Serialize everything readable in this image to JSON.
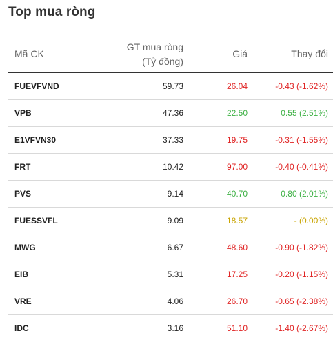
{
  "title": "Top mua ròng",
  "headers": {
    "symbol": "Mã CK",
    "value_line1": "GT mua ròng",
    "value_line2": "(Tỷ đồng)",
    "price": "Giá",
    "change": "Thay đổi"
  },
  "colors": {
    "up": "#3cb043",
    "down": "#e02424",
    "reference": "#c9a400"
  },
  "rows": [
    {
      "symbol": "FUEVFVND",
      "value": "59.73",
      "price": "26.04",
      "change": "-0.43 (-1.62%)",
      "trend": "down"
    },
    {
      "symbol": "VPB",
      "value": "47.36",
      "price": "22.50",
      "change": "0.55 (2.51%)",
      "trend": "up"
    },
    {
      "symbol": "E1VFVN30",
      "value": "37.33",
      "price": "19.75",
      "change": "-0.31 (-1.55%)",
      "trend": "down"
    },
    {
      "symbol": "FRT",
      "value": "10.42",
      "price": "97.00",
      "change": "-0.40 (-0.41%)",
      "trend": "down"
    },
    {
      "symbol": "PVS",
      "value": "9.14",
      "price": "40.70",
      "change": "0.80 (2.01%)",
      "trend": "up"
    },
    {
      "symbol": "FUESSVFL",
      "value": "9.09",
      "price": "18.57",
      "change": "- (0.00%)",
      "trend": "ref"
    },
    {
      "symbol": "MWG",
      "value": "6.67",
      "price": "48.60",
      "change": "-0.90 (-1.82%)",
      "trend": "down"
    },
    {
      "symbol": "EIB",
      "value": "5.31",
      "price": "17.25",
      "change": "-0.20 (-1.15%)",
      "trend": "down"
    },
    {
      "symbol": "VRE",
      "value": "4.06",
      "price": "26.70",
      "change": "-0.65 (-2.38%)",
      "trend": "down"
    },
    {
      "symbol": "IDC",
      "value": "3.16",
      "price": "51.10",
      "change": "-1.40 (-2.67%)",
      "trend": "down"
    }
  ]
}
